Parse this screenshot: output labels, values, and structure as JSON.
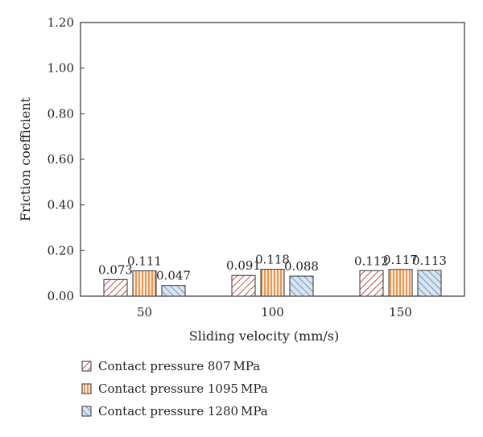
{
  "chart_data": {
    "type": "bar",
    "xlabel": "Sliding velocity (mm/s)",
    "ylabel": "Friction coefficient",
    "categories": [
      "50",
      "100",
      "150"
    ],
    "ylim": [
      0,
      1.2
    ],
    "yticks": [
      "0.00",
      "0.20",
      "0.40",
      "0.60",
      "0.80",
      "1.00",
      "1.20"
    ],
    "legend_position": "bottom-left",
    "grid": false,
    "series": [
      {
        "name": "Contact pressure 807 MPa",
        "values": [
          0.073,
          0.091,
          0.112
        ],
        "value_labels": [
          "0.073",
          "0.091",
          "0.112"
        ],
        "color": "#c0504d",
        "fill": "#ffffff",
        "pattern": "diagonal-hatch"
      },
      {
        "name": "Contact pressure 1095 MPa",
        "values": [
          0.111,
          0.118,
          0.117
        ],
        "value_labels": [
          "0.111",
          "0.118",
          "0.117"
        ],
        "color": "#e46c0a",
        "fill": "#fde9d9",
        "pattern": "vertical-hatch"
      },
      {
        "name": "Contact pressure 1280 MPa",
        "values": [
          0.047,
          0.088,
          0.113
        ],
        "value_labels": [
          "0.047",
          "0.088",
          "0.113"
        ],
        "color": "#4f81bd",
        "fill": "#dbe5f1",
        "pattern": "diagonal-hatch-reverse"
      }
    ]
  }
}
